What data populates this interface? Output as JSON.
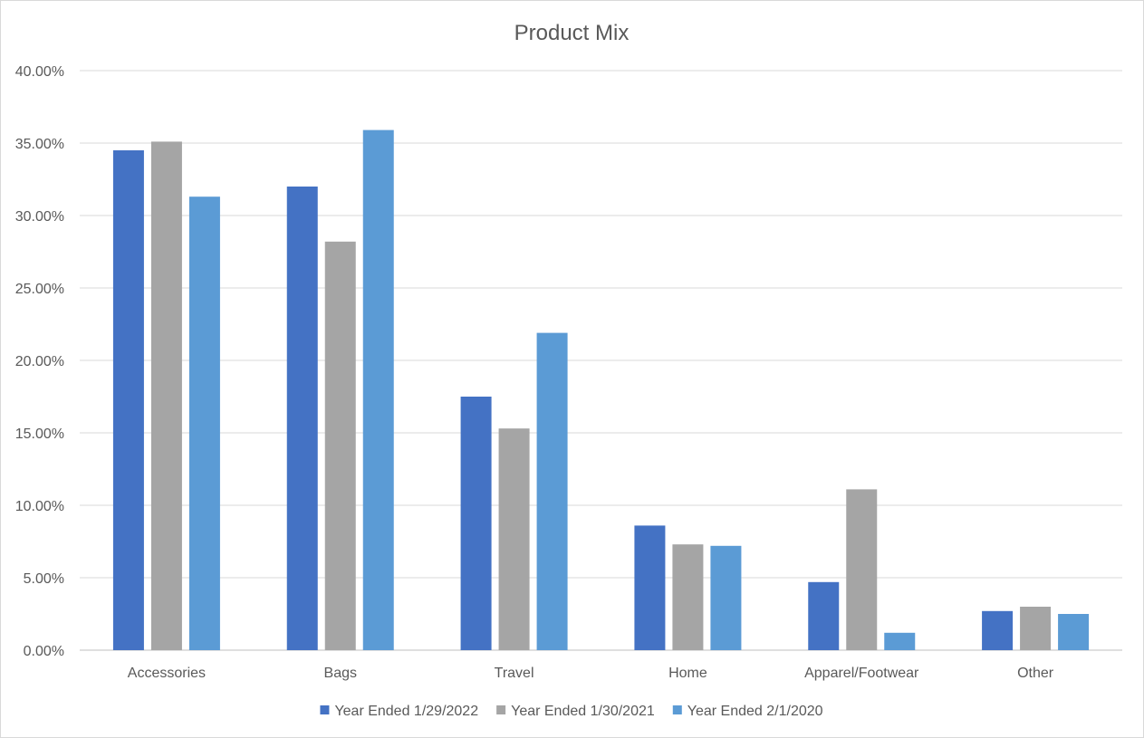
{
  "chart_data": {
    "type": "bar",
    "title": "Product Mix",
    "categories": [
      "Accessories",
      "Bags",
      "Travel",
      "Home",
      "Apparel/Footwear",
      "Other"
    ],
    "series": [
      {
        "name": "Year Ended 1/29/2022",
        "color": "#4472c4",
        "values": [
          34.5,
          32.0,
          17.5,
          8.6,
          4.7,
          2.7
        ]
      },
      {
        "name": "Year Ended 1/30/2021",
        "color": "#a5a5a5",
        "values": [
          35.1,
          28.2,
          15.3,
          7.3,
          11.1,
          3.0
        ]
      },
      {
        "name": "Year Ended 2/1/2020",
        "color": "#5b9bd5",
        "values": [
          31.3,
          35.9,
          21.9,
          7.2,
          1.2,
          2.5
        ]
      }
    ],
    "y_ticks": [
      "0.00%",
      "5.00%",
      "10.00%",
      "15.00%",
      "20.00%",
      "25.00%",
      "30.00%",
      "35.00%",
      "40.00%"
    ],
    "ylim": [
      0,
      40
    ],
    "y_unit": "percent",
    "grid": true,
    "legend_position": "bottom"
  }
}
